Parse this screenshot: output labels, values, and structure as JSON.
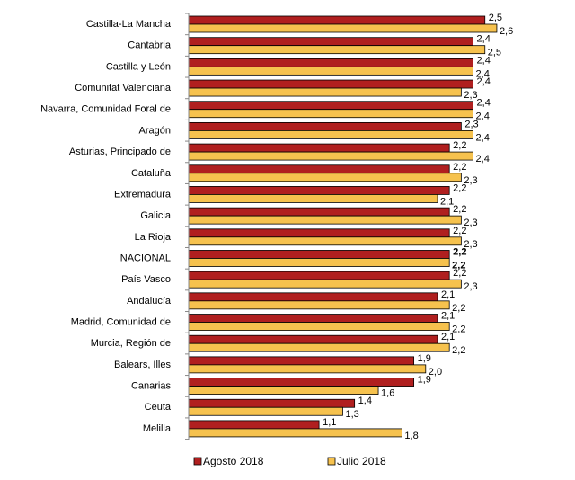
{
  "chart_data": {
    "type": "bar",
    "orientation": "horizontal",
    "categories": [
      "Castilla-La Mancha",
      "Cantabria",
      "Castilla y León",
      "Comunitat Valenciana",
      "Navarra, Comunidad Foral de",
      "Aragón",
      "Asturias, Principado de",
      "Cataluña",
      "Extremadura",
      "Galicia",
      "La Rioja",
      "NACIONAL",
      "País Vasco",
      "Andalucía",
      "Madrid, Comunidad de",
      "Murcia, Región de",
      "Balears, Illes",
      "Canarias",
      "Ceuta",
      "Melilla"
    ],
    "series": [
      {
        "name": "Agosto 2018",
        "color": "#B01F1F",
        "values": [
          2.5,
          2.4,
          2.4,
          2.4,
          2.4,
          2.3,
          2.2,
          2.2,
          2.2,
          2.2,
          2.2,
          2.2,
          2.2,
          2.1,
          2.1,
          2.1,
          1.9,
          1.9,
          1.4,
          1.1
        ]
      },
      {
        "name": "Julio 2018",
        "color": "#F6C24E",
        "values": [
          2.6,
          2.5,
          2.4,
          2.3,
          2.4,
          2.4,
          2.4,
          2.3,
          2.1,
          2.3,
          2.3,
          2.2,
          2.3,
          2.2,
          2.2,
          2.2,
          2.0,
          1.6,
          1.3,
          1.8
        ]
      }
    ],
    "value_labels": {
      "agosto": [
        "2,5",
        "2,4",
        "2,4",
        "2,4",
        "2,4",
        "2,3",
        "2,2",
        "2,2",
        "2,2",
        "2,2",
        "2,2",
        "2,2",
        "2,2",
        "2,1",
        "2,1",
        "2,1",
        "1,9",
        "1,9",
        "1,4",
        "1,1"
      ],
      "julio": [
        "2,6",
        "2,5",
        "2,4",
        "2,3",
        "2,4",
        "2,4",
        "2,4",
        "2,3",
        "2,1",
        "2,3",
        "2,3",
        "2,2",
        "2,3",
        "2,2",
        "2,2",
        "2,2",
        "2,0",
        "1,6",
        "1,3",
        "1,8"
      ]
    },
    "highlight_category": "NACIONAL",
    "xlim": [
      0,
      2.6
    ],
    "grid": false,
    "legend_position": "bottom"
  }
}
